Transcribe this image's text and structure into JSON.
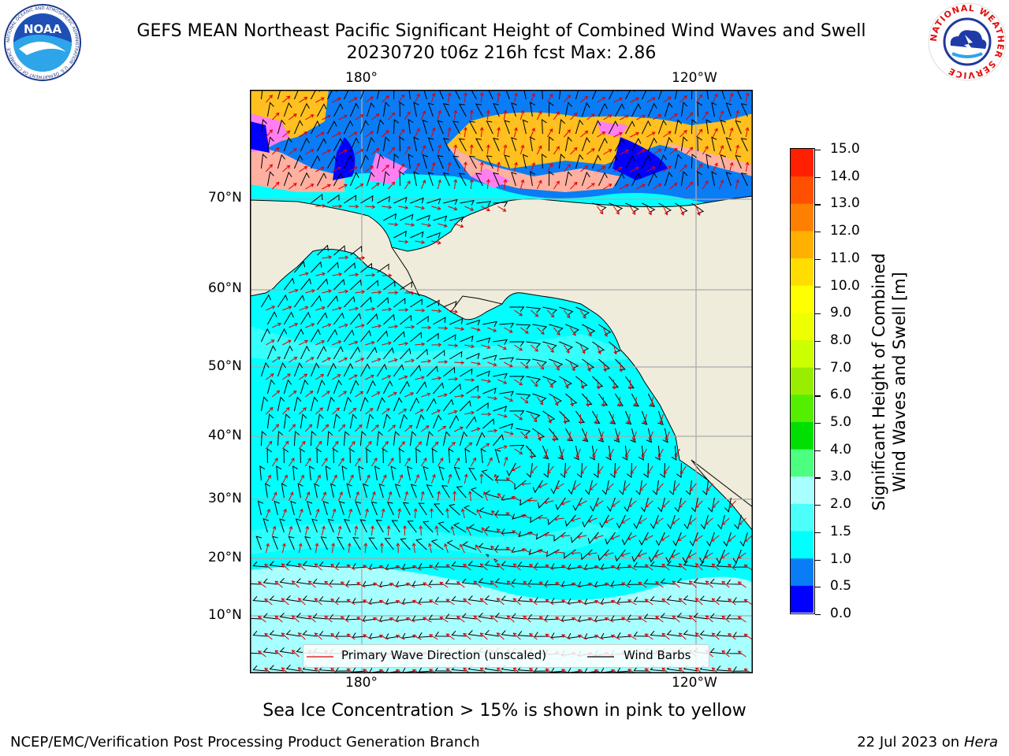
{
  "header": {
    "title_line1": "GEFS MEAN Northeast Pacific Significant Height of Combined Wind Waves and Swell",
    "title_line2": "20230720 t06z 216h fcst   Max: 2.86"
  },
  "logos": {
    "noaa_text": "NOAA",
    "noaa_ring": "NATIONAL OCEANIC AND ATMOSPHERIC ADMINISTRATION · U.S. DEPARTMENT OF COMMERCE",
    "nws_ring": "NATIONAL WEATHER SERVICE"
  },
  "map": {
    "top_lon_labels": [
      "180°",
      "120°W"
    ],
    "bottom_lon_labels": [
      "180°",
      "120°W"
    ],
    "lat_labels": [
      "70°N",
      "60°N",
      "50°N",
      "40°N",
      "30°N",
      "20°N",
      "10°N"
    ],
    "colors": {
      "land": "#efecdc",
      "ocean_main": "#00ffff",
      "ocean_light": "#a8ffff",
      "ocean_mid": "#4dfffa",
      "ocean_deep": "#0a7cf5",
      "ice_low": "#ff7ff0",
      "ice_mid": "#ffb0a0",
      "ice_high": "#ffc020",
      "barb": "#000000",
      "wave_arrow": "#e00000"
    }
  },
  "legend": {
    "wave_label": "Primary Wave Direction (unscaled)",
    "barb_label": "Wind Barbs"
  },
  "colorbar": {
    "label_line1": "Significant Height of Combined",
    "label_line2": "Wind Waves and Swell [m]",
    "ticks": [
      "15.0",
      "14.0",
      "13.0",
      "12.0",
      "11.0",
      "10.0",
      "9.0",
      "8.0",
      "7.0",
      "6.0",
      "5.0",
      "4.0",
      "3.0",
      "2.0",
      "1.5",
      "1.0",
      "0.5",
      "0.0"
    ],
    "colors_bottom_to_top": [
      "#0000ff",
      "#0a7cf5",
      "#00ffff",
      "#4dfffa",
      "#a8ffff",
      "#4dff80",
      "#00e000",
      "#55ee00",
      "#99ee00",
      "#ccff00",
      "#eeff00",
      "#ffff00",
      "#ffdd00",
      "#ffb000",
      "#ff8000",
      "#ff5000",
      "#ff2000"
    ]
  },
  "caption": "Sea Ice Concentration > 15% is shown in pink to yellow",
  "footer": {
    "left": "NCEP/EMC/Verification Post Processing Product Generation Branch",
    "date": "22 Jul 2023 on ",
    "host": "Hera"
  }
}
